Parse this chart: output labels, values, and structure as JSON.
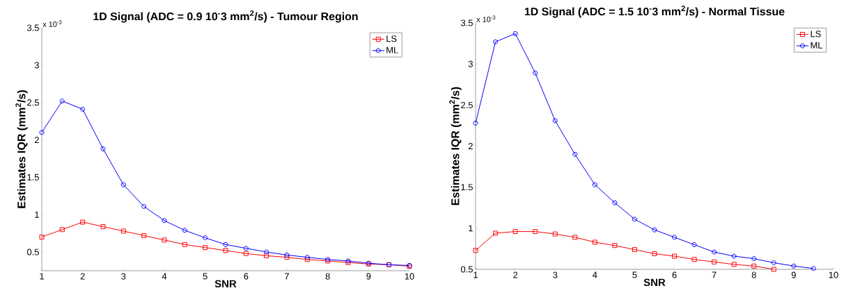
{
  "chart_data": [
    {
      "type": "line",
      "title": "1D Signal (ADC = 0.9 10$^{-}$3 mm$^{2}$/s) - Tumour Region",
      "xlabel": "SNR",
      "ylabel": "Estimates IQR (mm$^{2}$/s)",
      "annotations": [
        "x 10$^{-3}$"
      ],
      "x": [
        1,
        1.5,
        2,
        2.5,
        3,
        3.5,
        4,
        4.5,
        5,
        5.5,
        6,
        6.5,
        7,
        7.5,
        8,
        8.5,
        9,
        9.5,
        10
      ],
      "series": [
        {
          "name": "LS",
          "color": "#ff0000",
          "marker": "square",
          "values": [
            0.7,
            0.8,
            0.9,
            0.84,
            0.78,
            0.72,
            0.66,
            0.6,
            0.56,
            0.52,
            0.48,
            0.45,
            0.43,
            0.4,
            0.38,
            0.36,
            0.34,
            0.33,
            0.31
          ]
        },
        {
          "name": "ML",
          "color": "#0000ff",
          "marker": "circle",
          "values": [
            2.1,
            2.52,
            2.41,
            1.88,
            1.4,
            1.11,
            0.92,
            0.79,
            0.69,
            0.6,
            0.55,
            0.5,
            0.46,
            0.43,
            0.4,
            0.38,
            0.35,
            0.33,
            0.32
          ]
        }
      ],
      "xlim": [
        1,
        10
      ],
      "ylim": [
        0.25,
        3.5
      ],
      "xticks": [
        1,
        2,
        3,
        4,
        5,
        6,
        7,
        8,
        9,
        10
      ],
      "yticks": [
        0.5,
        1,
        1.5,
        2,
        2.5,
        3,
        3.5
      ],
      "legend": "top right",
      "grid": false
    },
    {
      "type": "line",
      "title": "1D Signal (ADC = 1.5 10$^{-}$3 mm$^{2}$/s) - Normal Tissue",
      "xlabel": "SNR",
      "ylabel": "Estimates IQR (mm$^{2}$/s)",
      "annotations": [
        "x 10$^{-3}$"
      ],
      "series": [
        {
          "name": "LS",
          "color": "#ff0000",
          "marker": "square",
          "x": [
            1,
            1.5,
            2,
            2.5,
            3,
            3.5,
            4,
            4.5,
            5,
            5.5,
            6,
            6.5,
            7,
            7.5,
            8,
            8.5
          ],
          "values": [
            0.73,
            0.94,
            0.96,
            0.96,
            0.93,
            0.89,
            0.83,
            0.79,
            0.74,
            0.69,
            0.66,
            0.62,
            0.59,
            0.56,
            0.54,
            0.5
          ]
        },
        {
          "name": "ML",
          "color": "#0000ff",
          "marker": "circle",
          "x": [
            1,
            1.5,
            2,
            2.5,
            3,
            3.5,
            4,
            4.5,
            5,
            5.5,
            6,
            6.5,
            7,
            7.5,
            8,
            8.5,
            9,
            9.5
          ],
          "values": [
            2.28,
            3.27,
            3.37,
            2.89,
            2.31,
            1.9,
            1.53,
            1.31,
            1.11,
            0.98,
            0.89,
            0.8,
            0.71,
            0.66,
            0.63,
            0.58,
            0.54,
            0.51
          ]
        }
      ],
      "xlim": [
        1,
        10
      ],
      "ylim": [
        0.5,
        3.5
      ],
      "xticks": [
        1,
        2,
        3,
        4,
        5,
        6,
        7,
        8,
        9,
        10
      ],
      "yticks": [
        0.5,
        1,
        1.5,
        2,
        2.5,
        3,
        3.5
      ],
      "legend": "top right",
      "grid": false
    }
  ]
}
